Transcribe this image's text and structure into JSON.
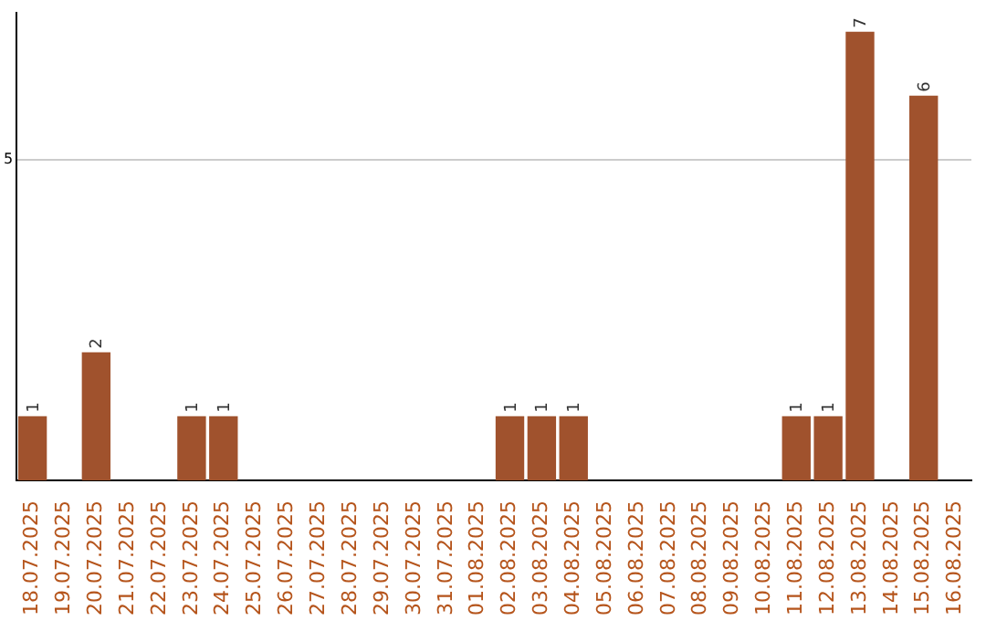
{
  "chart_data": {
    "type": "bar",
    "categories": [
      "18.07.2025",
      "19.07.2025",
      "20.07.2025",
      "21.07.2025",
      "22.07.2025",
      "23.07.2025",
      "24.07.2025",
      "25.07.2025",
      "26.07.2025",
      "27.07.2025",
      "28.07.2025",
      "29.07.2025",
      "30.07.2025",
      "31.07.2025",
      "01.08.2025",
      "02.08.2025",
      "03.08.2025",
      "04.08.2025",
      "05.08.2025",
      "06.08.2025",
      "07.08.2025",
      "08.08.2025",
      "09.08.2025",
      "10.08.2025",
      "11.08.2025",
      "12.08.2025",
      "13.08.2025",
      "14.08.2025",
      "15.08.2025",
      "16.08.2025"
    ],
    "values": [
      1,
      0,
      2,
      0,
      0,
      1,
      1,
      0,
      0,
      0,
      0,
      0,
      0,
      0,
      0,
      1,
      1,
      1,
      0,
      0,
      0,
      0,
      0,
      0,
      1,
      1,
      7,
      0,
      6,
      0
    ],
    "value_labels": [
      "1",
      null,
      "2",
      null,
      null,
      "1",
      "1",
      null,
      null,
      null,
      null,
      null,
      null,
      null,
      null,
      "1",
      "1",
      "1",
      null,
      null,
      null,
      null,
      null,
      null,
      "1",
      "1",
      "7",
      null,
      "6",
      null
    ],
    "color": "#a0522d",
    "ylim": [
      0,
      7.3
    ],
    "yticks": [
      5
    ],
    "grid": "y",
    "legend": false
  }
}
